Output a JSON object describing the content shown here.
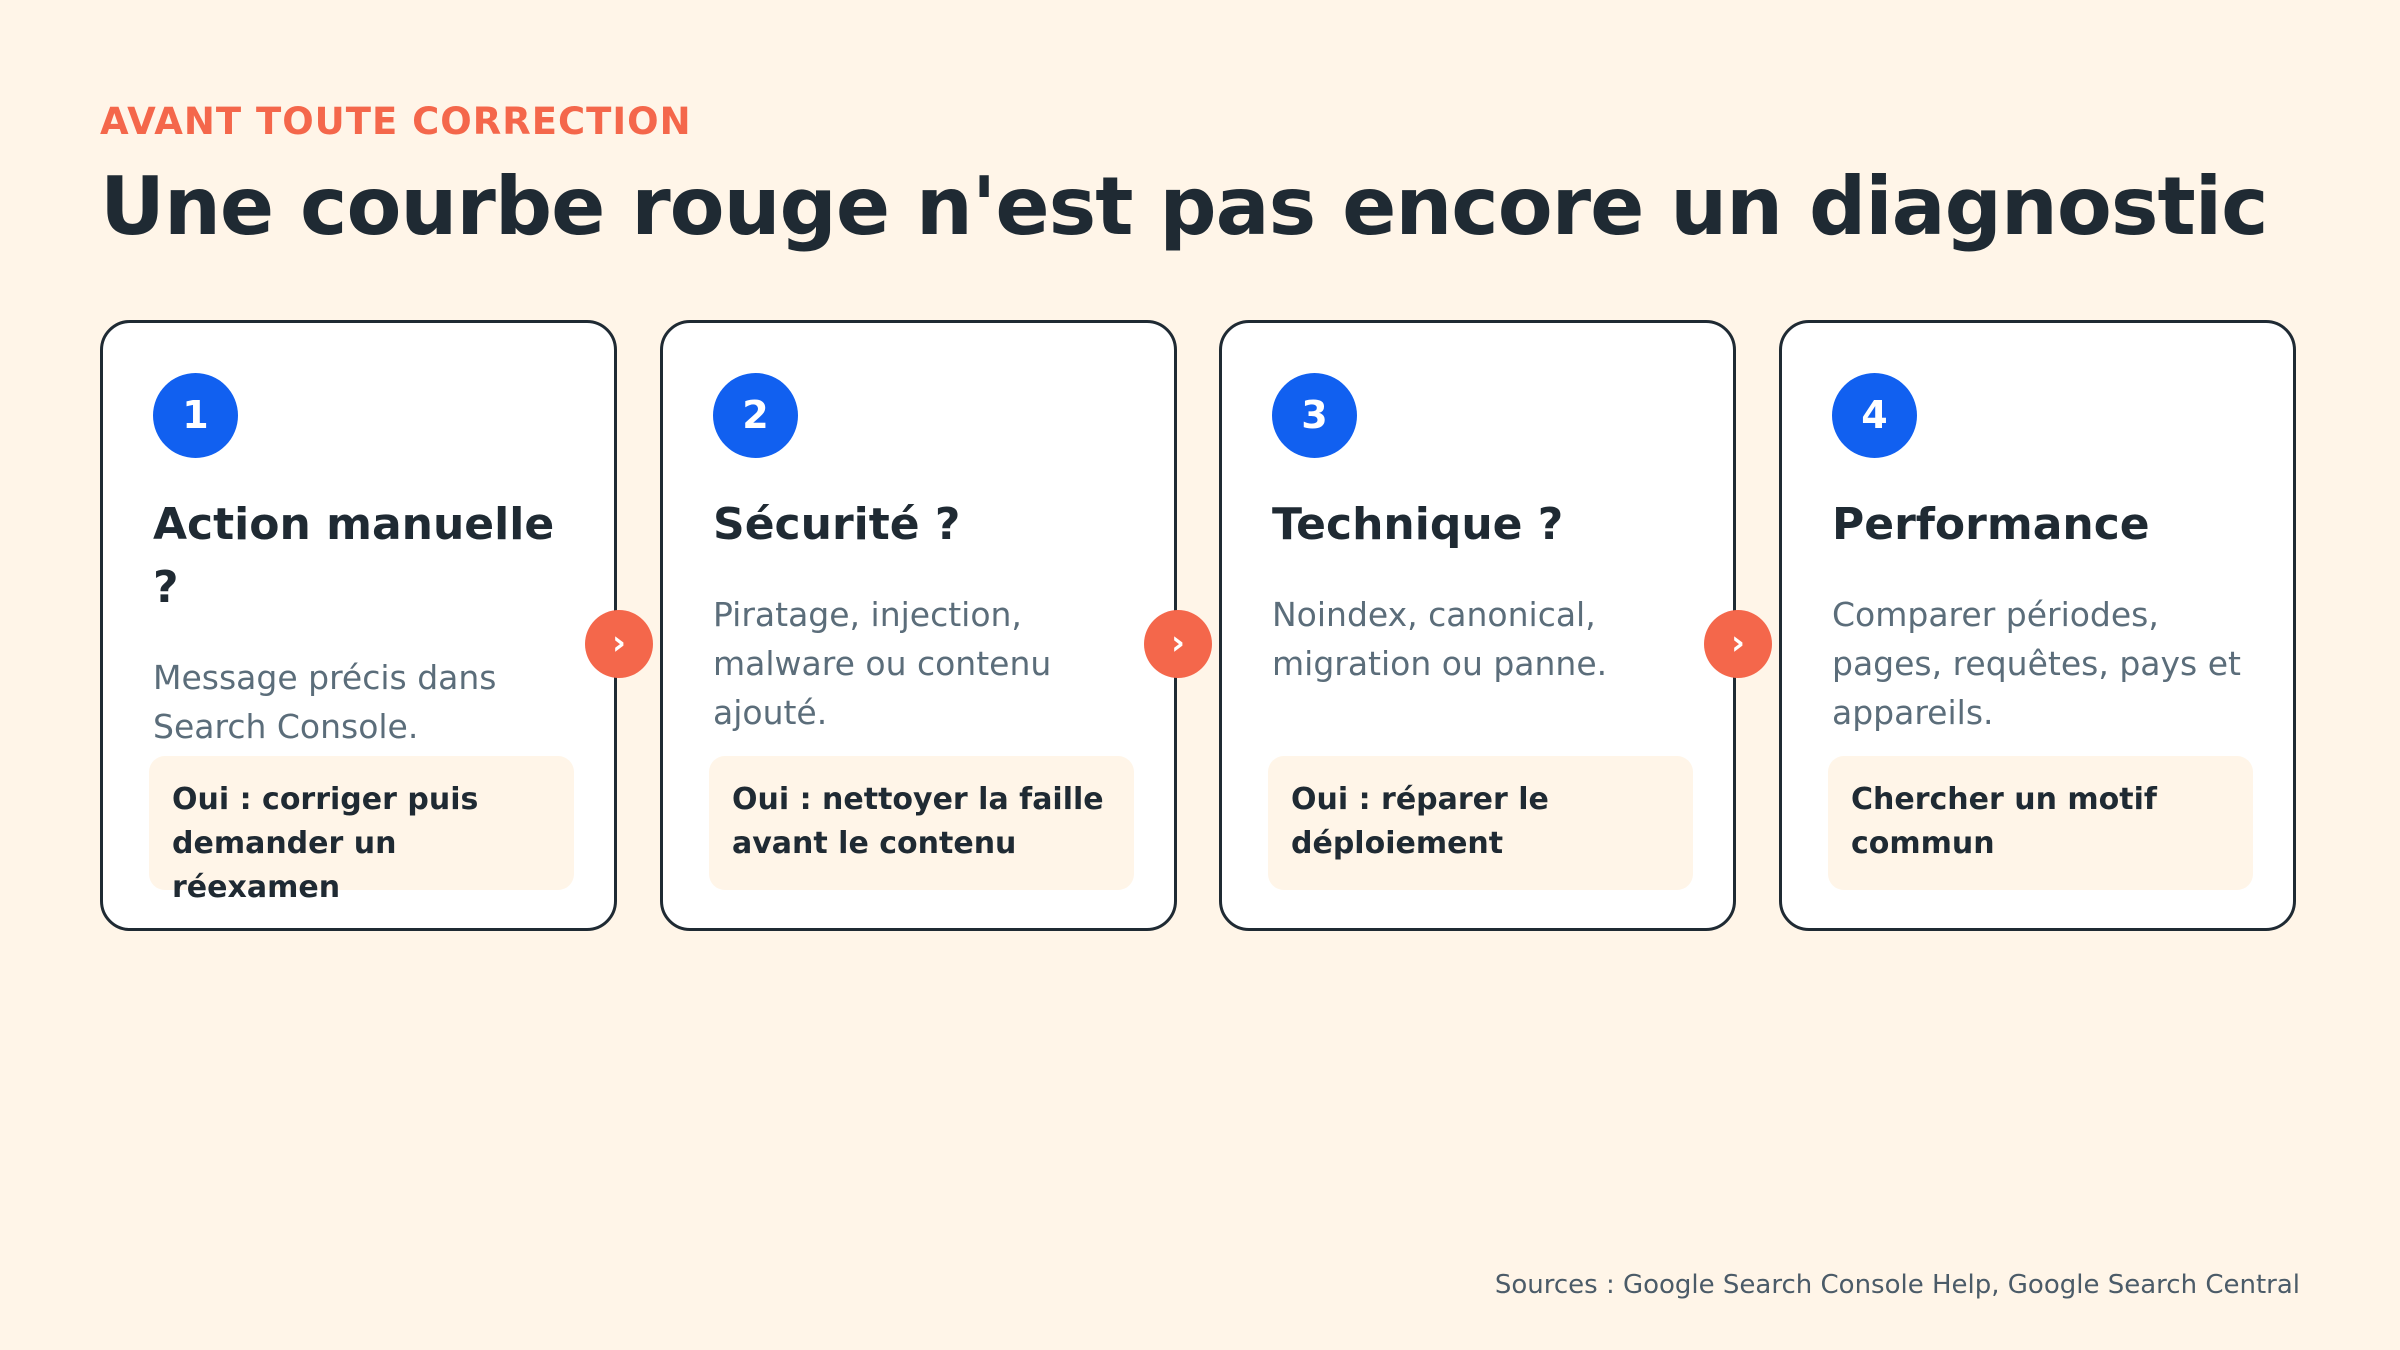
{
  "header": {
    "eyebrow": "AVANT TOUTE CORRECTION",
    "title": "Une courbe rouge n'est pas encore un diagnostic"
  },
  "steps": [
    {
      "number": "1",
      "title": "Action manuelle ?",
      "description": "Message précis dans Search Console.",
      "answer": "Oui : corriger puis demander un réexamen"
    },
    {
      "number": "2",
      "title": "Sécurité ?",
      "description": "Piratage, injection, malware ou contenu ajouté.",
      "answer": "Oui : nettoyer la faille avant le contenu"
    },
    {
      "number": "3",
      "title": "Technique ?",
      "description": "Noindex, canonical, migration ou panne.",
      "answer": "Oui : réparer le déploiement"
    },
    {
      "number": "4",
      "title": "Performance",
      "description": "Comparer périodes, pages, requêtes, pays et appareils.",
      "answer": "Chercher un motif commun"
    }
  ],
  "connector_symbol": "›",
  "footer": {
    "sources": "Sources : Google Search Console Help, Google Search Central"
  },
  "colors": {
    "background": "#fff5e8",
    "accent": "#f4674b",
    "badge": "#1160f0",
    "text": "#1f2a33",
    "muted": "#5b6d7a"
  }
}
